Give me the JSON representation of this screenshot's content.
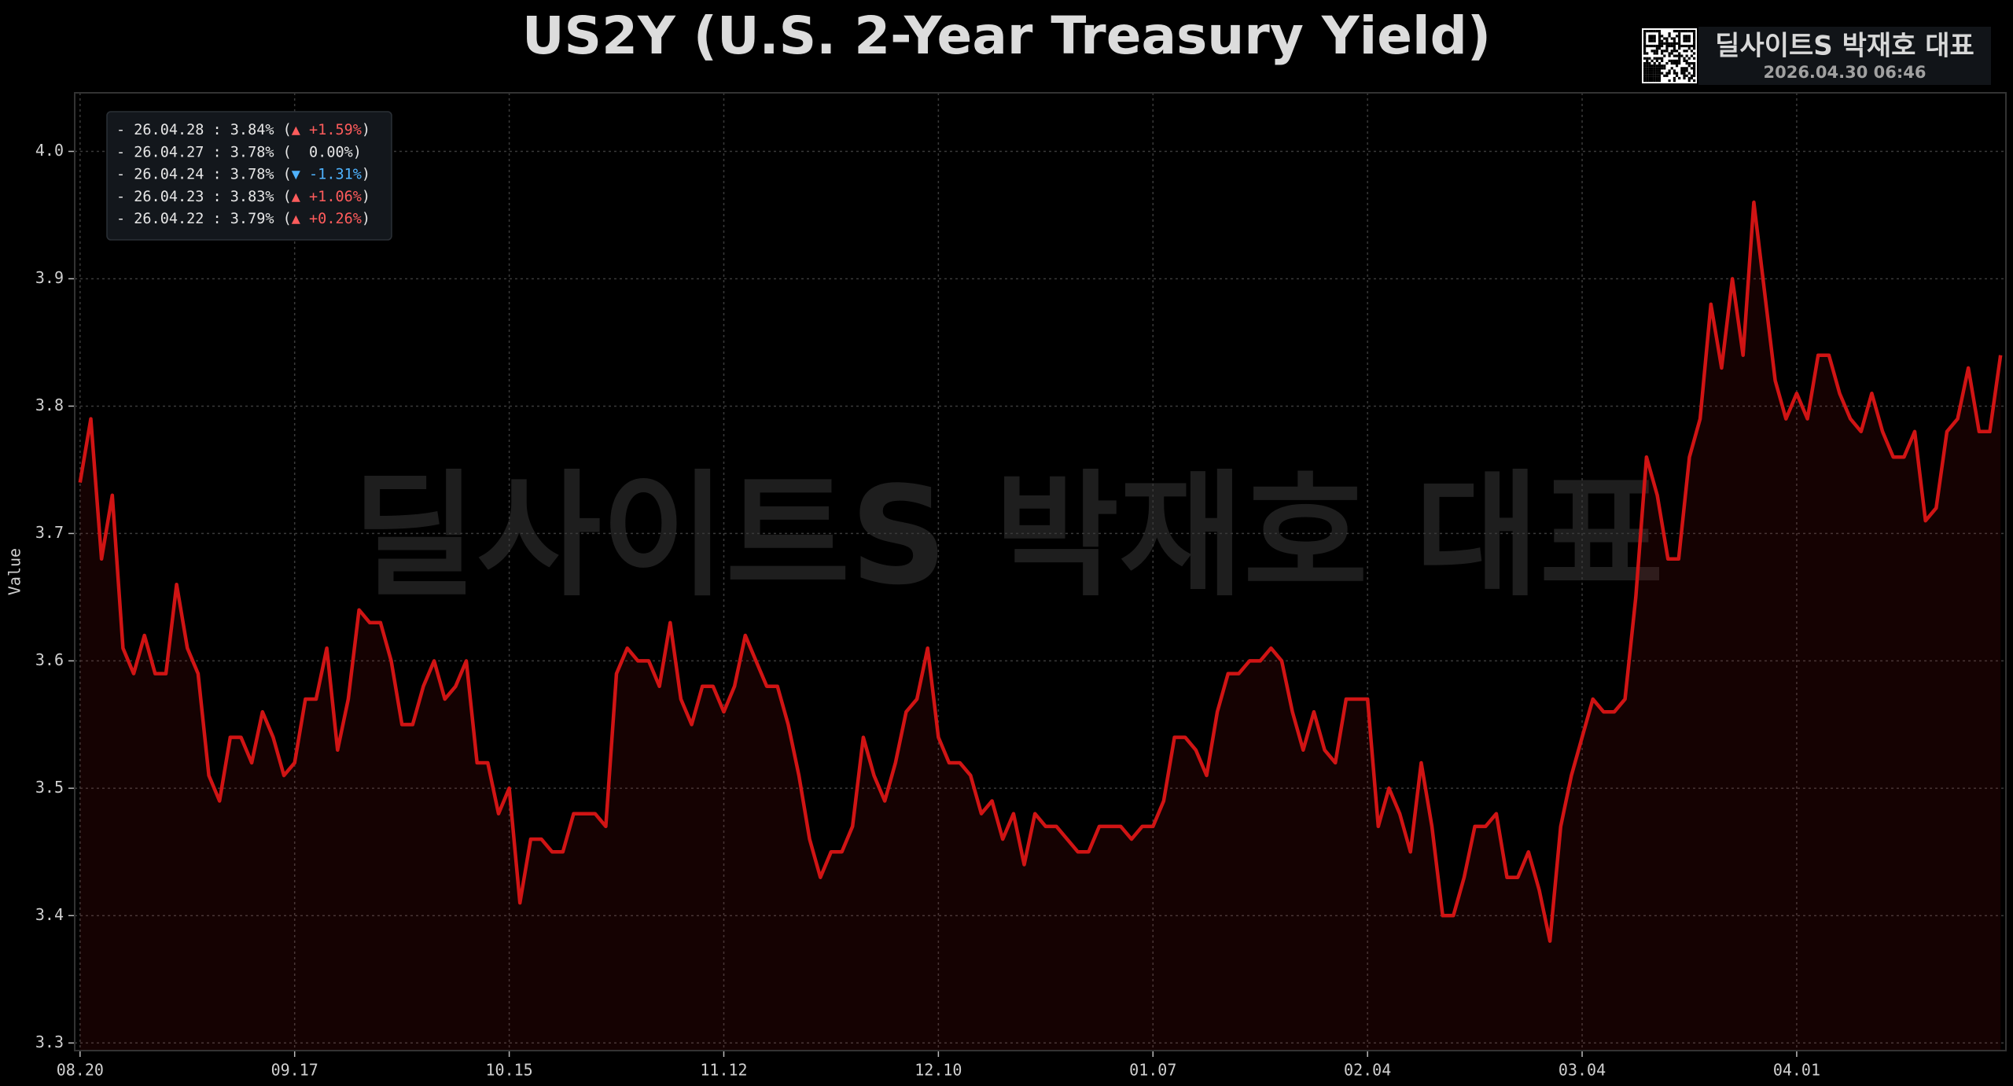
{
  "chart_data": {
    "type": "line",
    "title": "US2Y (U.S. 2-Year Treasury Yield)",
    "y_label": "Value",
    "brand": "딜사이트S 박재호 대표",
    "timestamp": "2026.04.30 06:46",
    "watermark": "딜사이트S 박재호 대표",
    "legend_lines": [
      {
        "text": "- 26.04.28 : 3.84% (",
        "change": "▲ +1.59%",
        "end": ")",
        "color": "#ff5c5c"
      },
      {
        "text": "- 26.04.27 : 3.78% (",
        "change": "  0.00%",
        "end": ")",
        "color": "#e6e6e6"
      },
      {
        "text": "- 26.04.24 : 3.78% (",
        "change": "▼ -1.31%",
        "end": ")",
        "color": "#4fb3ff"
      },
      {
        "text": "- 26.04.23 : 3.83% (",
        "change": "▲ +1.06%",
        "end": ")",
        "color": "#ff5c5c"
      },
      {
        "text": "- 26.04.22 : 3.79% (",
        "change": "▲ +0.26%",
        "end": ")",
        "color": "#ff5c5c"
      }
    ],
    "xlim": [
      -0.5,
      179.5
    ],
    "xticks": [
      {
        "value": 0,
        "label": "08.20"
      },
      {
        "value": 20,
        "label": "09.17"
      },
      {
        "value": 40,
        "label": "10.15"
      },
      {
        "value": 60,
        "label": "11.12"
      },
      {
        "value": 80,
        "label": "12.10"
      },
      {
        "value": 100,
        "label": "01.07"
      },
      {
        "value": 120,
        "label": "02.04"
      },
      {
        "value": 140,
        "label": "03.04"
      },
      {
        "value": 160,
        "label": "04.01"
      }
    ],
    "ylim": [
      3.294,
      4.046
    ],
    "yticks": [
      3.3,
      3.4,
      3.5,
      3.6,
      3.7,
      {
        "value": 3.8,
        "label": "3.8"
      },
      3.9,
      {
        "value": 4.0,
        "label": "4.0"
      }
    ],
    "grid": true,
    "series": [
      {
        "color": "#d01414",
        "values": [
          3.74,
          3.79,
          3.68,
          3.73,
          3.61,
          3.59,
          3.62,
          3.59,
          3.59,
          3.66,
          3.61,
          3.59,
          3.51,
          3.49,
          3.54,
          3.54,
          3.52,
          3.56,
          3.54,
          3.51,
          3.52,
          3.57,
          3.57,
          3.61,
          3.53,
          3.57,
          3.64,
          3.63,
          3.63,
          3.6,
          3.55,
          3.55,
          3.58,
          3.6,
          3.57,
          3.58,
          3.6,
          3.52,
          3.52,
          3.48,
          3.5,
          3.41,
          3.46,
          3.46,
          3.45,
          3.45,
          3.48,
          3.48,
          3.48,
          3.47,
          3.59,
          3.61,
          3.6,
          3.6,
          3.58,
          3.63,
          3.57,
          3.55,
          3.58,
          3.58,
          3.56,
          3.58,
          3.62,
          3.6,
          3.58,
          3.58,
          3.55,
          3.51,
          3.46,
          3.43,
          3.45,
          3.45,
          3.47,
          3.54,
          3.51,
          3.49,
          3.52,
          3.56,
          3.57,
          3.61,
          3.54,
          3.52,
          3.52,
          3.51,
          3.48,
          3.49,
          3.46,
          3.48,
          3.44,
          3.48,
          3.47,
          3.47,
          3.46,
          3.45,
          3.45,
          3.47,
          3.47,
          3.47,
          3.46,
          3.47,
          3.47,
          3.49,
          3.54,
          3.54,
          3.53,
          3.51,
          3.56,
          3.59,
          3.59,
          3.6,
          3.6,
          3.61,
          3.6,
          3.56,
          3.53,
          3.56,
          3.53,
          3.52,
          3.57,
          3.57,
          3.57,
          3.47,
          3.5,
          3.48,
          3.45,
          3.52,
          3.47,
          3.4,
          3.4,
          3.43,
          3.47,
          3.47,
          3.48,
          3.43,
          3.43,
          3.45,
          3.42,
          3.38,
          3.47,
          3.51,
          3.54,
          3.57,
          3.56,
          3.56,
          3.57,
          3.65,
          3.76,
          3.73,
          3.68,
          3.68,
          3.76,
          3.79,
          3.88,
          3.83,
          3.9,
          3.84,
          3.96,
          3.89,
          3.82,
          3.79,
          3.81,
          3.79,
          3.84,
          3.84,
          3.81,
          3.79,
          3.78,
          3.81,
          3.78,
          3.76,
          3.76,
          3.78,
          3.71,
          3.72,
          3.78,
          3.79,
          3.83,
          3.78,
          3.78,
          3.84
        ]
      }
    ]
  }
}
